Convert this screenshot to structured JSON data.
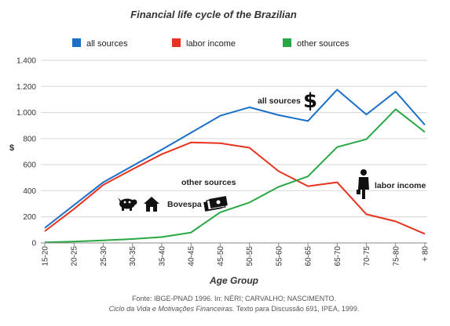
{
  "chart_data": {
    "type": "line",
    "title": "Financial life cycle of the Brazilian",
    "xlabel": "Age Group",
    "ylabel": "$",
    "categories": [
      "15-20",
      "20-25",
      "25-30",
      "30-35",
      "35-40",
      "40-45",
      "45-50",
      "50-55",
      "55-60",
      "60-65",
      "65-70",
      "70-75",
      "75-80",
      "+ 80"
    ],
    "ylim": [
      0,
      1400
    ],
    "yticks": [
      0,
      200,
      400,
      600,
      800,
      1000,
      1200,
      1400
    ],
    "ytick_labels": [
      "0",
      "200",
      "400",
      "600",
      "800",
      "1.000",
      "1.200",
      "1.400"
    ],
    "grid": "horizontal",
    "legend_position": "top",
    "series": [
      {
        "name": "all sources",
        "color": "#1a6fc9",
        "values": [
          115,
          290,
          465,
          590,
          715,
          845,
          975,
          1040,
          980,
          935,
          1175,
          985,
          1160,
          905
        ]
      },
      {
        "name": "labor income",
        "color": "#e8321e",
        "values": [
          90,
          260,
          445,
          565,
          680,
          770,
          765,
          730,
          550,
          435,
          465,
          220,
          165,
          70
        ]
      },
      {
        "name": "other sources",
        "color": "#27a845",
        "values": [
          5,
          10,
          20,
          30,
          45,
          80,
          235,
          310,
          430,
          510,
          735,
          795,
          1025,
          850
        ]
      }
    ],
    "annotations": {
      "all_sources": "all sources",
      "other_sources": "other sources",
      "bovespa": "Bovespa",
      "labor_income": "labor income"
    }
  },
  "icons": {
    "dollar": "dollar-icon",
    "pig": "piggy-bank-icon",
    "house": "house-icon",
    "money": "banknotes-icon",
    "worker": "businessman-icon"
  },
  "source_note": {
    "line1": "Fonte: IBGE-PNAD 1996. In: NÉRI; CARVALHO; NASCIMENTO.",
    "line2_italic": "Ciclo da Vida e Motivações Financeiras.",
    "line2_rest": " Texto para Discussão 691, IPEA, 1999."
  }
}
